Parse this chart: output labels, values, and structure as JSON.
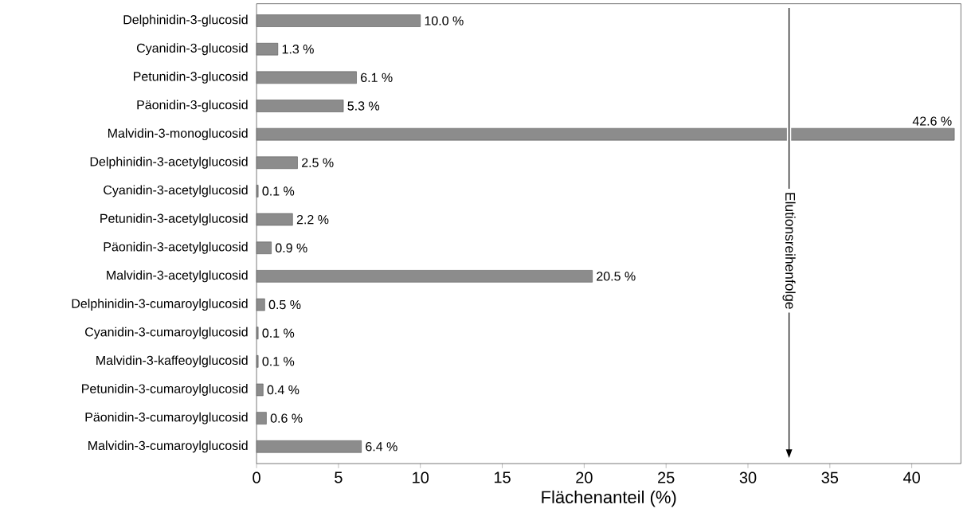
{
  "chart_data": {
    "type": "bar",
    "orientation": "horizontal",
    "xlabel": "Flächenanteil (%)",
    "categories": [
      "Delphinidin-3-glucosid",
      "Cyanidin-3-glucosid",
      "Petunidin-3-glucosid",
      "Päonidin-3-glucosid",
      "Malvidin-3-monoglucosid",
      "Delphinidin-3-acetylglucosid",
      "Cyanidin-3-acetylglucosid",
      "Petunidin-3-acetylglucosid",
      "Päonidin-3-acetylglucosid",
      "Malvidin-3-acetylglucosid",
      "Delphinidin-3-cumaroylglucosid",
      "Cyanidin-3-cumaroylglucosid",
      "Malvidin-3-kaffeoylglucosid",
      "Petunidin-3-cumaroylglucosid",
      "Päonidin-3-cumaroylglucosid",
      "Malvidin-3-cumaroylglucosid"
    ],
    "values": [
      10.0,
      1.3,
      6.1,
      5.3,
      42.6,
      2.5,
      0.1,
      2.2,
      0.9,
      20.5,
      0.5,
      0.1,
      0.1,
      0.4,
      0.6,
      6.4
    ],
    "value_labels": [
      "10.0 %",
      "1.3 %",
      "6.1 %",
      "5.3 %",
      "42.6 %",
      "2.5 %",
      "0.1 %",
      "2.2 %",
      "0.9 %",
      "20.5 %",
      "0.5 %",
      "0.1 %",
      "0.1 %",
      "0.4 %",
      "0.6 %",
      "6.4 %"
    ],
    "color": "#8c8c8c",
    "xlim": [
      0,
      43
    ],
    "xticks": [
      0,
      5,
      10,
      15,
      20,
      25,
      30,
      35,
      40
    ],
    "annotations": [
      "Elutionsreihenfolge"
    ]
  }
}
